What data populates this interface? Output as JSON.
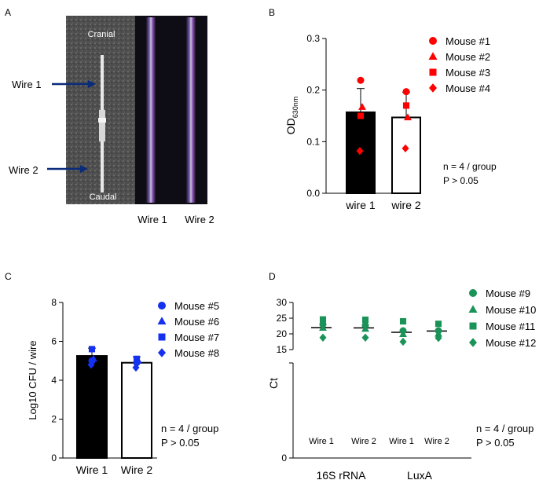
{
  "panel_letters": {
    "A": "A",
    "B": "B",
    "C": "C",
    "D": "D"
  },
  "photo": {
    "cranial_label": "Cranial",
    "caudal_label": "Caudal",
    "arrow_labels": [
      "Wire 1",
      "Wire 2"
    ],
    "bottom_labels": [
      "Wire 1",
      "Wire 2"
    ]
  },
  "chart_data": [
    {
      "panel": "B",
      "type": "bar",
      "categories": [
        "wire 1",
        "wire 2"
      ],
      "bar_means": [
        0.157,
        0.147
      ],
      "error_upper": [
        0.203,
        0.196
      ],
      "bar_fills": [
        "#000000",
        "#ffffff"
      ],
      "ylabel_main": "OD",
      "ylabel_sub": "630nm",
      "ylim": [
        0,
        0.3
      ],
      "yticks": [
        "0.0",
        "0.1",
        "0.2",
        "0.3"
      ],
      "ytick_values": [
        0,
        0.1,
        0.2,
        0.3
      ],
      "color": "#ff0000",
      "series": [
        {
          "name": "Mouse #1",
          "marker": "circle",
          "values": [
            0.219,
            0.197
          ]
        },
        {
          "name": "Mouse #2",
          "marker": "triangle",
          "values": [
            0.167,
            0.147
          ]
        },
        {
          "name": "Mouse #3",
          "marker": "square",
          "values": [
            0.15,
            0.17
          ]
        },
        {
          "name": "Mouse #4",
          "marker": "diamond",
          "values": [
            0.082,
            0.087
          ]
        }
      ],
      "annotation": [
        "n = 4 / group",
        "P > 0.05"
      ]
    },
    {
      "panel": "C",
      "type": "bar",
      "categories": [
        "Wire 1",
        "Wire 2"
      ],
      "bar_means": [
        5.25,
        4.9
      ],
      "error_upper": [
        5.65,
        5.2
      ],
      "error_lower": [
        4.85,
        4.1
      ],
      "bar_fills": [
        "#000000",
        "#ffffff"
      ],
      "ylabel": "Log10 CFU / wire",
      "ylim": [
        0,
        8
      ],
      "yticks": [
        "0",
        "2",
        "4",
        "6",
        "8"
      ],
      "ytick_values": [
        0,
        2,
        4,
        6,
        8
      ],
      "color": "#1430f0",
      "series": [
        {
          "name": "Mouse #5",
          "marker": "circle",
          "values": [
            5.0,
            4.9
          ]
        },
        {
          "name": "Mouse #6",
          "marker": "triangle",
          "values": [
            5.1,
            5.0
          ]
        },
        {
          "name": "Mouse #7",
          "marker": "square",
          "values": [
            5.6,
            5.1
          ]
        },
        {
          "name": "Mouse #8",
          "marker": "diamond",
          "values": [
            4.8,
            4.65
          ]
        }
      ],
      "annotation": [
        "n = 4 / group",
        "P > 0.05"
      ]
    },
    {
      "panel": "D",
      "type": "scatter",
      "groups": [
        "16S rRNA",
        "LuxA"
      ],
      "categories": [
        "Wire 1",
        "Wire 2",
        "Wire 1",
        "Wire 2"
      ],
      "means": [
        22.0,
        21.9,
        20.5,
        20.9
      ],
      "ylabel": "Ct",
      "ylim_upper": [
        15,
        30
      ],
      "ylim_lower": [
        0,
        0
      ],
      "yticks": [
        "0",
        "15",
        "20",
        "25",
        "30"
      ],
      "ytick_values": [
        0,
        15,
        20,
        25,
        30
      ],
      "color": "#1a9358",
      "series": [
        {
          "name": "Mouse #9",
          "marker": "circle",
          "values": [
            23.0,
            22.7,
            21.0,
            21.0
          ]
        },
        {
          "name": "Mouse #10",
          "marker": "triangle",
          "values": [
            21.9,
            21.6,
            19.9,
            20.0
          ]
        },
        {
          "name": "Mouse #11",
          "marker": "square",
          "values": [
            24.6,
            24.5,
            24.0,
            23.2
          ]
        },
        {
          "name": "Mouse #12",
          "marker": "diamond",
          "values": [
            18.8,
            18.8,
            17.5,
            18.7
          ]
        }
      ],
      "annotation": [
        "n = 4 / group",
        "P > 0.05"
      ]
    }
  ]
}
